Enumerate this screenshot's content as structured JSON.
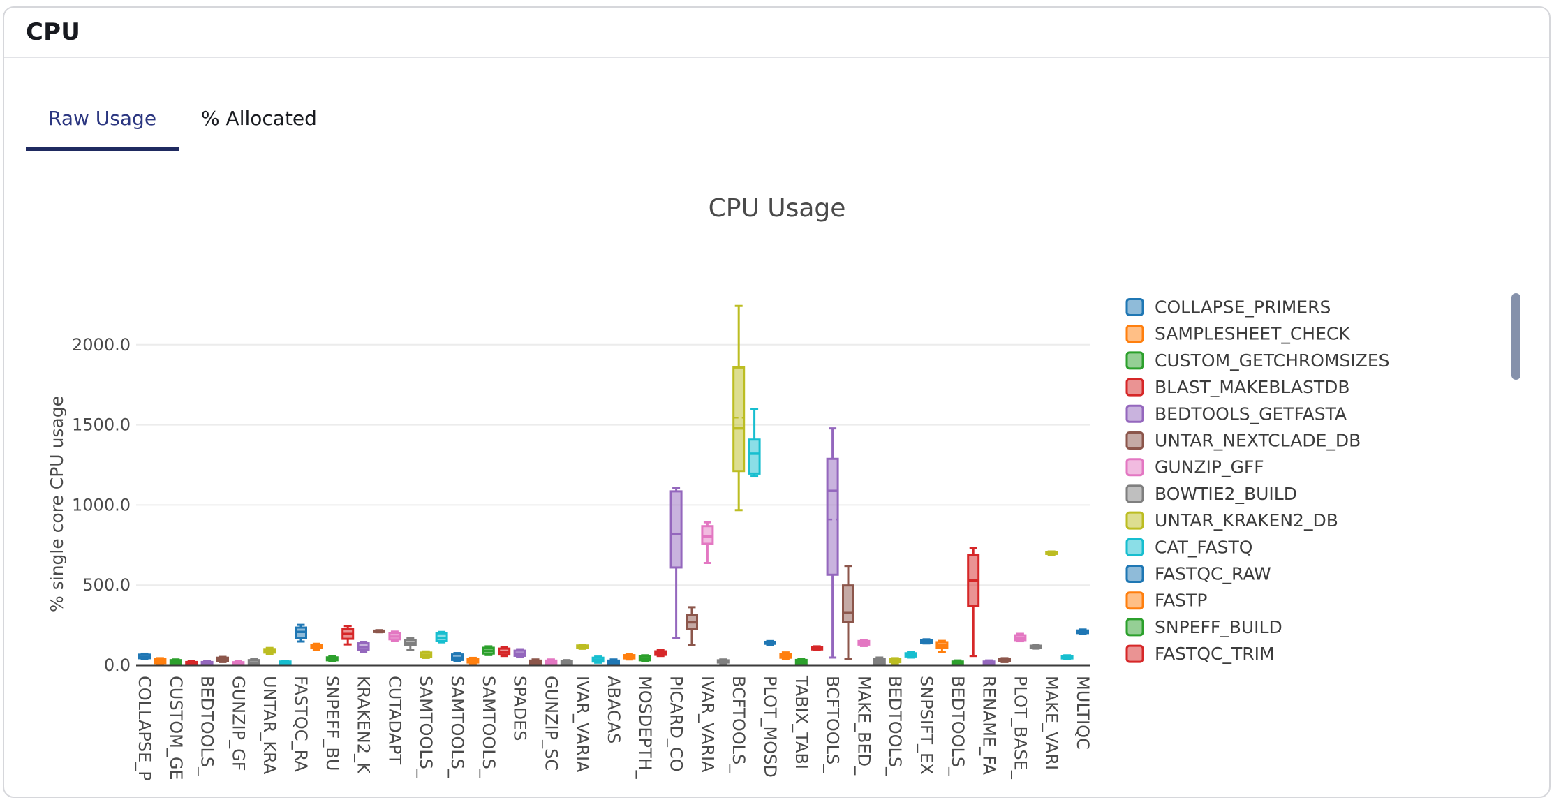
{
  "header": {
    "title": "CPU"
  },
  "tabs": [
    {
      "label": "Raw Usage",
      "active": true
    },
    {
      "label": "% Allocated",
      "active": false
    }
  ],
  "colors": {
    "tab_active_text": "#2b3680",
    "tab_underline": "#1f2a60",
    "card_border": "#d6d7db",
    "chart_text": "#4a4a4a",
    "gridline": "#ececec",
    "axis_line": "#3b3b3b",
    "scrollbar": "#8591ab"
  },
  "chart_data": {
    "type": "box",
    "title": "CPU Usage",
    "ylabel": "% single core CPU usage",
    "ytick_labels": [
      "0.0",
      "500.0",
      "1000.0",
      "1500.0",
      "2000.0"
    ],
    "ytick_values": [
      0,
      500,
      1000,
      1500,
      2000
    ],
    "ylim": [
      0,
      2660
    ],
    "grid": true,
    "legend_position": "right",
    "palette": [
      "#1f77b4",
      "#ff7f0e",
      "#2ca02c",
      "#d62728",
      "#9467bd",
      "#8c564b",
      "#e377c2",
      "#7f7f7f",
      "#bcbd22",
      "#17becf"
    ],
    "xtick_labels": [
      "COLLAPSE_P",
      "CUSTOM_GE",
      "BEDTOOLS_",
      "GUNZIP_GF",
      "UNTAR_KRA",
      "FASTQC_RA",
      "SNPEFF_BU",
      "KRAKEN2_K",
      "CUTADAPT",
      "SAMTOOLS_",
      "SAMTOOLS_",
      "SAMTOOLS_",
      "SPADES",
      "GUNZIP_SC",
      "IVAR_VARIA",
      "ABACAS",
      "MOSDEPTH_",
      "PICARD_CO",
      "IVAR_VARIA",
      "BCFTOOLS_",
      "PLOT_MOSD",
      "TABIX_TABI",
      "BCFTOOLS_",
      "MAKE_BED_",
      "BEDTOOLS_",
      "SNPSIFT_EX",
      "BEDTOOLS_",
      "RENAME_FA",
      "PLOT_BASE_",
      "MAKE_VARI",
      "MULTIQC"
    ],
    "boxes": [
      [
        38,
        44,
        52,
        66,
        72
      ],
      [
        6,
        14,
        24,
        38,
        44
      ],
      [
        4,
        10,
        20,
        32,
        36
      ],
      [
        0,
        4,
        10,
        20,
        26
      ],
      [
        0,
        4,
        10,
        20,
        26
      ],
      [
        20,
        27,
        36,
        47,
        52
      ],
      [
        0,
        4,
        10,
        19,
        24
      ],
      [
        0,
        7,
        16,
        32,
        38
      ],
      [
        70,
        79,
        89,
        101,
        108
      ],
      [
        0,
        5,
        13,
        23,
        28
      ],
      [
        148,
        168,
        208,
        235,
        252
      ],
      [
        98,
        107,
        116,
        127,
        134
      ],
      [
        24,
        31,
        39,
        49,
        55
      ],
      [
        130,
        165,
        195,
        228,
        245
      ],
      [
        82,
        95,
        113,
        137,
        146
      ],
      [
        206,
        209,
        212,
        216,
        219
      ],
      [
        153,
        162,
        179,
        201,
        210
      ],
      [
        98,
        125,
        141,
        159,
        172
      ],
      [
        46,
        54,
        64,
        79,
        86
      ],
      [
        143,
        151,
        170,
        199,
        208
      ],
      [
        26,
        33,
        46,
        67,
        76
      ],
      [
        10,
        17,
        27,
        39,
        46
      ],
      [
        64,
        73,
        90,
        109,
        118
      ],
      [
        58,
        67,
        83,
        104,
        112
      ],
      [
        50,
        59,
        73,
        91,
        100
      ],
      [
        4,
        9,
        17,
        29,
        36
      ],
      [
        4,
        9,
        17,
        29,
        36
      ],
      [
        3,
        8,
        15,
        25,
        32
      ],
      [
        103,
        109,
        115,
        123,
        128
      ],
      [
        16,
        23,
        33,
        47,
        54
      ],
      [
        4,
        9,
        17,
        29,
        36
      ],
      [
        36,
        43,
        51,
        63,
        70
      ],
      [
        24,
        31,
        41,
        55,
        62
      ],
      [
        58,
        65,
        75,
        87,
        94
      ],
      [
        170,
        610,
        820,
        1085,
        1108
      ],
      [
        128,
        225,
        268,
        312,
        362
      ],
      [
        638,
        758,
        804,
        868,
        892
      ],
      [
        12,
        17,
        23,
        31,
        36
      ],
      [
        968,
        1212,
        1478,
        1858,
        2242,
        1545
      ],
      [
        1178,
        1196,
        1320,
        1408,
        1600
      ],
      [
        128,
        134,
        140,
        146,
        151
      ],
      [
        38,
        47,
        57,
        71,
        80
      ],
      [
        6,
        13,
        21,
        33,
        40
      ],
      [
        94,
        99,
        105,
        112,
        118
      ],
      [
        48,
        565,
        1088,
        1288,
        1478,
        910
      ],
      [
        40,
        268,
        330,
        498,
        620
      ],
      [
        120,
        129,
        139,
        151,
        158
      ],
      [
        6,
        13,
        23,
        39,
        48
      ],
      [
        12,
        19,
        27,
        37,
        44
      ],
      [
        48,
        55,
        63,
        75,
        82
      ],
      [
        136,
        141,
        147,
        155,
        162
      ],
      [
        84,
        111,
        127,
        144,
        152
      ],
      [
        3,
        7,
        13,
        23,
        30
      ],
      [
        58,
        368,
        528,
        690,
        730
      ],
      [
        3,
        7,
        13,
        23,
        30
      ],
      [
        20,
        25,
        31,
        39,
        44
      ],
      [
        150,
        157,
        167,
        187,
        196
      ],
      [
        104,
        109,
        115,
        122,
        128
      ],
      [
        690,
        695,
        700,
        706,
        710
      ],
      [
        38,
        43,
        49,
        57,
        62
      ],
      [
        194,
        201,
        209,
        217,
        223
      ]
    ],
    "legend_items": [
      {
        "label": "COLLAPSE_PRIMERS",
        "color": "#1f77b4"
      },
      {
        "label": "SAMPLESHEET_CHECK",
        "color": "#ff7f0e"
      },
      {
        "label": "CUSTOM_GETCHROMSIZES",
        "color": "#2ca02c"
      },
      {
        "label": "BLAST_MAKEBLASTDB",
        "color": "#d62728"
      },
      {
        "label": "BEDTOOLS_GETFASTA",
        "color": "#9467bd"
      },
      {
        "label": "UNTAR_NEXTCLADE_DB",
        "color": "#8c564b"
      },
      {
        "label": "GUNZIP_GFF",
        "color": "#e377c2"
      },
      {
        "label": "BOWTIE2_BUILD",
        "color": "#7f7f7f"
      },
      {
        "label": "UNTAR_KRAKEN2_DB",
        "color": "#bcbd22"
      },
      {
        "label": "CAT_FASTQ",
        "color": "#17becf"
      },
      {
        "label": "FASTQC_RAW",
        "color": "#1f77b4"
      },
      {
        "label": "FASTP",
        "color": "#ff7f0e"
      },
      {
        "label": "SNPEFF_BUILD",
        "color": "#2ca02c"
      },
      {
        "label": "FASTQC_TRIM",
        "color": "#d62728"
      }
    ]
  }
}
